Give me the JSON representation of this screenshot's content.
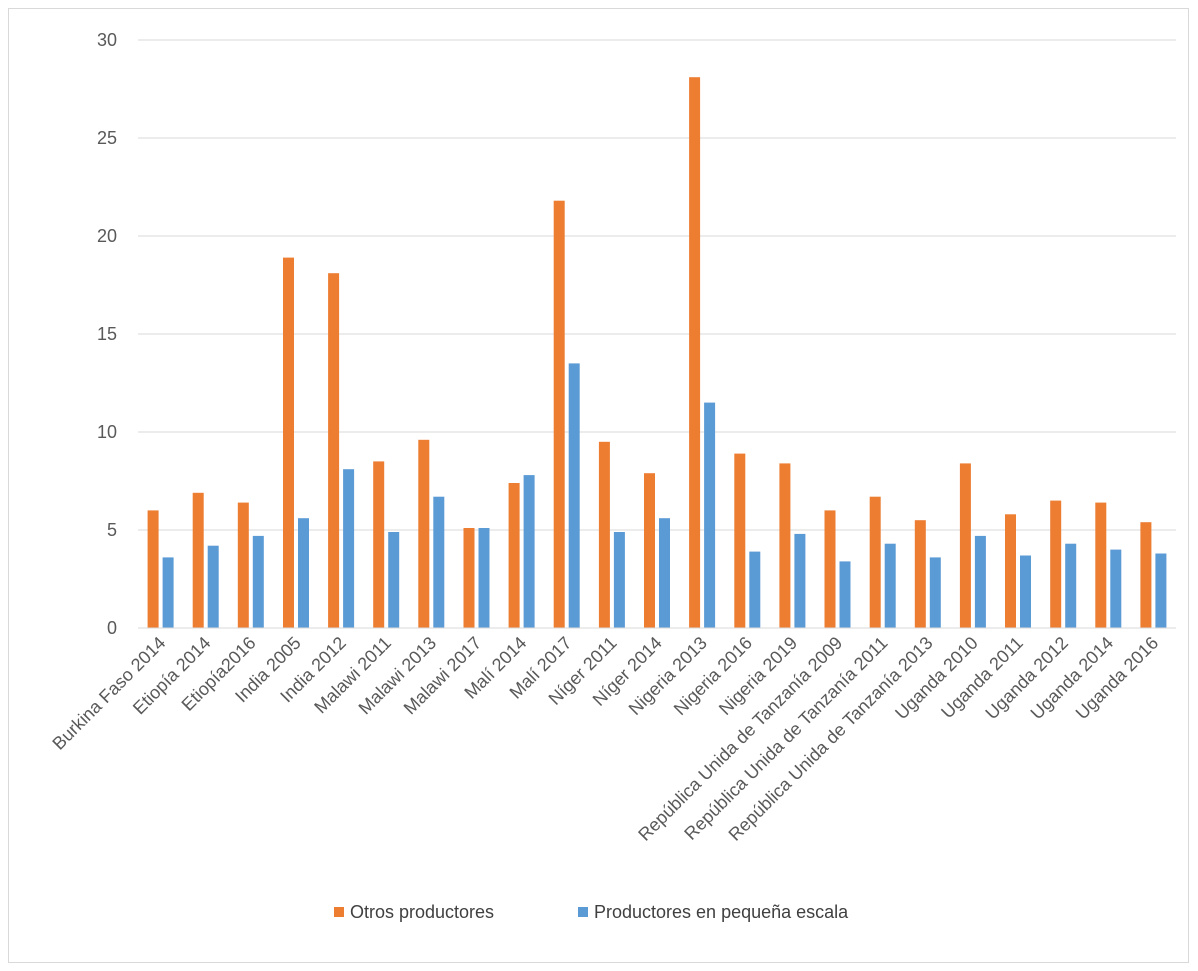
{
  "chart_data": {
    "type": "bar",
    "categories": [
      "Burkina Faso 2014",
      "Etiopía 2014",
      "Etiopía2016",
      "India 2005",
      "India 2012",
      "Malawi 2011",
      "Malawi 2013",
      "Malawi 2017",
      "Malí 2014",
      "Malí 2017",
      "Níger 2011",
      "Níger 2014",
      "Nigeria 2013",
      "Nigeria 2016",
      "Nigeria 2019",
      "República Unida de Tanzanía 2009",
      "República Unida de Tanzanía 2011",
      "República Unida de Tanzanía 2013",
      "Uganda 2010",
      "Uganda 2011",
      "Uganda 2012",
      "Uganda 2014",
      "Uganda 2016"
    ],
    "series": [
      {
        "name": "Otros productores",
        "color": "#ED7D31",
        "values": [
          6.0,
          6.9,
          6.4,
          18.9,
          18.1,
          8.5,
          9.6,
          5.1,
          7.4,
          21.8,
          9.5,
          7.9,
          28.1,
          8.9,
          8.4,
          6.0,
          6.7,
          5.5,
          8.4,
          5.8,
          6.5,
          6.4,
          5.4
        ]
      },
      {
        "name": "Productores en pequeña escala",
        "color": "#5B9BD5",
        "values": [
          3.6,
          4.2,
          4.7,
          5.6,
          8.1,
          4.9,
          6.7,
          5.1,
          7.8,
          13.5,
          4.9,
          5.6,
          11.5,
          3.9,
          4.8,
          3.4,
          4.3,
          3.6,
          4.7,
          3.7,
          4.3,
          4.0,
          3.8
        ]
      }
    ],
    "y_ticks": [
      "0",
      "5",
      "10",
      "15",
      "20",
      "25",
      "30"
    ],
    "ylim": [
      0,
      30
    ],
    "grid": true,
    "legend_position": "bottom"
  }
}
